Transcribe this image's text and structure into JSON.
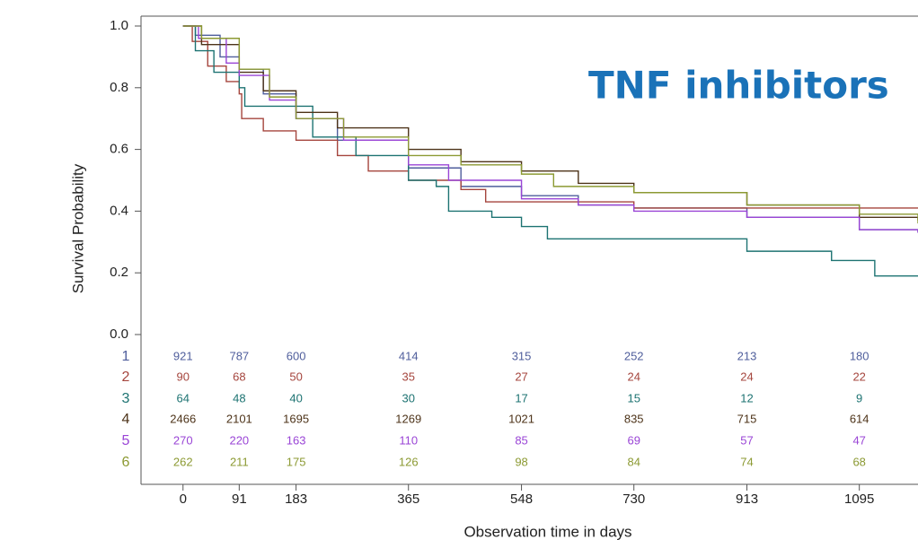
{
  "chart_data": {
    "type": "step",
    "title": "TNF inhibitors",
    "x_label": "Observation time in days",
    "y_label": "Survival Probability",
    "xlim": [
      -68,
      1190
    ],
    "ylim": [
      0,
      1
    ],
    "xticks": [
      0,
      91,
      183,
      365,
      548,
      730,
      913,
      1095
    ],
    "yticks": [
      {
        "value": 0,
        "label": "0.0"
      },
      {
        "value": 0.2,
        "label": "0.2"
      },
      {
        "value": 0.4,
        "label": "0.4"
      },
      {
        "value": 0.6,
        "label": "0.6"
      },
      {
        "value": 0.8,
        "label": "0.8"
      },
      {
        "value": 1,
        "label": "1.0"
      }
    ],
    "series": [
      {
        "name": "1",
        "color": "#4f5e9c",
        "x": [
          0,
          20,
          60,
          91,
          130,
          183,
          250,
          365,
          450,
          548,
          640,
          730,
          913,
          1095,
          1190
        ],
        "values": [
          1,
          0.97,
          0.9,
          0.86,
          0.78,
          0.7,
          0.63,
          0.54,
          0.48,
          0.45,
          0.42,
          0.41,
          0.38,
          0.34,
          0.33
        ],
        "at_risk": [
          921,
          787,
          600,
          414,
          315,
          252,
          213,
          180
        ]
      },
      {
        "name": "2",
        "color": "#a5453d",
        "x": [
          0,
          15,
          40,
          70,
          91,
          95,
          130,
          183,
          250,
          300,
          365,
          450,
          490,
          730,
          1000,
          1190
        ],
        "values": [
          1,
          0.95,
          0.87,
          0.82,
          0.78,
          0.7,
          0.66,
          0.63,
          0.58,
          0.53,
          0.5,
          0.47,
          0.43,
          0.41,
          0.41,
          0.41
        ],
        "at_risk": [
          90,
          68,
          50,
          35,
          27,
          24,
          24,
          22
        ]
      },
      {
        "name": "3",
        "color": "#1d7372",
        "x": [
          0,
          20,
          50,
          91,
          100,
          183,
          210,
          280,
          365,
          410,
          430,
          500,
          548,
          590,
          913,
          1050,
          1120,
          1190
        ],
        "values": [
          1,
          0.92,
          0.85,
          0.8,
          0.74,
          0.74,
          0.64,
          0.58,
          0.5,
          0.48,
          0.4,
          0.38,
          0.35,
          0.31,
          0.27,
          0.24,
          0.19,
          0.19
        ],
        "at_risk": [
          64,
          48,
          40,
          30,
          17,
          15,
          12,
          9
        ]
      },
      {
        "name": "4",
        "color": "#4d3319",
        "x": [
          0,
          30,
          91,
          130,
          183,
          250,
          365,
          450,
          548,
          640,
          730,
          913,
          1095,
          1190
        ],
        "values": [
          1,
          0.94,
          0.85,
          0.79,
          0.72,
          0.67,
          0.6,
          0.56,
          0.53,
          0.49,
          0.46,
          0.42,
          0.38,
          0.37
        ],
        "at_risk": [
          2466,
          2101,
          1695,
          1269,
          1021,
          835,
          715,
          614
        ]
      },
      {
        "name": "5",
        "color": "#9a45d6",
        "x": [
          0,
          25,
          70,
          91,
          140,
          183,
          260,
          365,
          430,
          548,
          640,
          730,
          913,
          1095,
          1190
        ],
        "values": [
          1,
          0.96,
          0.88,
          0.84,
          0.76,
          0.7,
          0.63,
          0.55,
          0.5,
          0.44,
          0.42,
          0.4,
          0.38,
          0.34,
          0.33
        ],
        "at_risk": [
          270,
          220,
          163,
          110,
          85,
          69,
          57,
          47
        ]
      },
      {
        "name": "6",
        "color": "#8c9a33",
        "x": [
          0,
          30,
          91,
          140,
          183,
          260,
          365,
          450,
          548,
          600,
          730,
          913,
          1095,
          1190
        ],
        "values": [
          1,
          0.96,
          0.86,
          0.77,
          0.7,
          0.64,
          0.58,
          0.55,
          0.52,
          0.48,
          0.46,
          0.42,
          0.39,
          0.36
        ],
        "at_risk": [
          262,
          211,
          175,
          126,
          98,
          84,
          74,
          68
        ]
      }
    ]
  }
}
